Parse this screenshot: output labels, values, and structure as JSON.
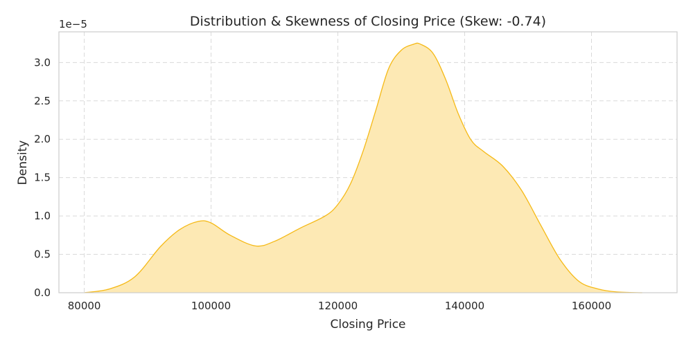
{
  "chart_data": {
    "type": "area",
    "title": "Distribution & Skewness of Closing Price (Skew: -0.74)",
    "xlabel": "Closing Price",
    "ylabel": "Density",
    "y_scale_label": "1e−5",
    "xlim": [
      76000,
      173500
    ],
    "ylim": [
      0,
      3.4
    ],
    "x_ticks": [
      80000,
      100000,
      120000,
      140000,
      160000
    ],
    "y_ticks": [
      "0.0",
      "0.5",
      "1.0",
      "1.5",
      "2.0",
      "2.5",
      "3.0"
    ],
    "grid": true,
    "colors": {
      "line": "#f5b915",
      "fill": "#fde9b4"
    },
    "series": [
      {
        "x": [
          80000,
          84000,
          88000,
          92000,
          95000,
          98000,
          100000,
          103000,
          107000,
          110000,
          114000,
          118000,
          120000,
          122000,
          124000,
          126000,
          128000,
          130000,
          132000,
          133000,
          135000,
          137000,
          139000,
          141000,
          143000,
          146000,
          149000,
          152000,
          155000,
          158000,
          161000,
          164000,
          168000
        ],
        "y": [
          0.0,
          0.05,
          0.21,
          0.6,
          0.82,
          0.93,
          0.91,
          0.75,
          0.61,
          0.67,
          0.84,
          1.0,
          1.15,
          1.42,
          1.85,
          2.38,
          2.92,
          3.16,
          3.24,
          3.24,
          3.12,
          2.78,
          2.33,
          1.99,
          1.84,
          1.65,
          1.33,
          0.88,
          0.44,
          0.15,
          0.05,
          0.01,
          0.0
        ]
      }
    ]
  }
}
